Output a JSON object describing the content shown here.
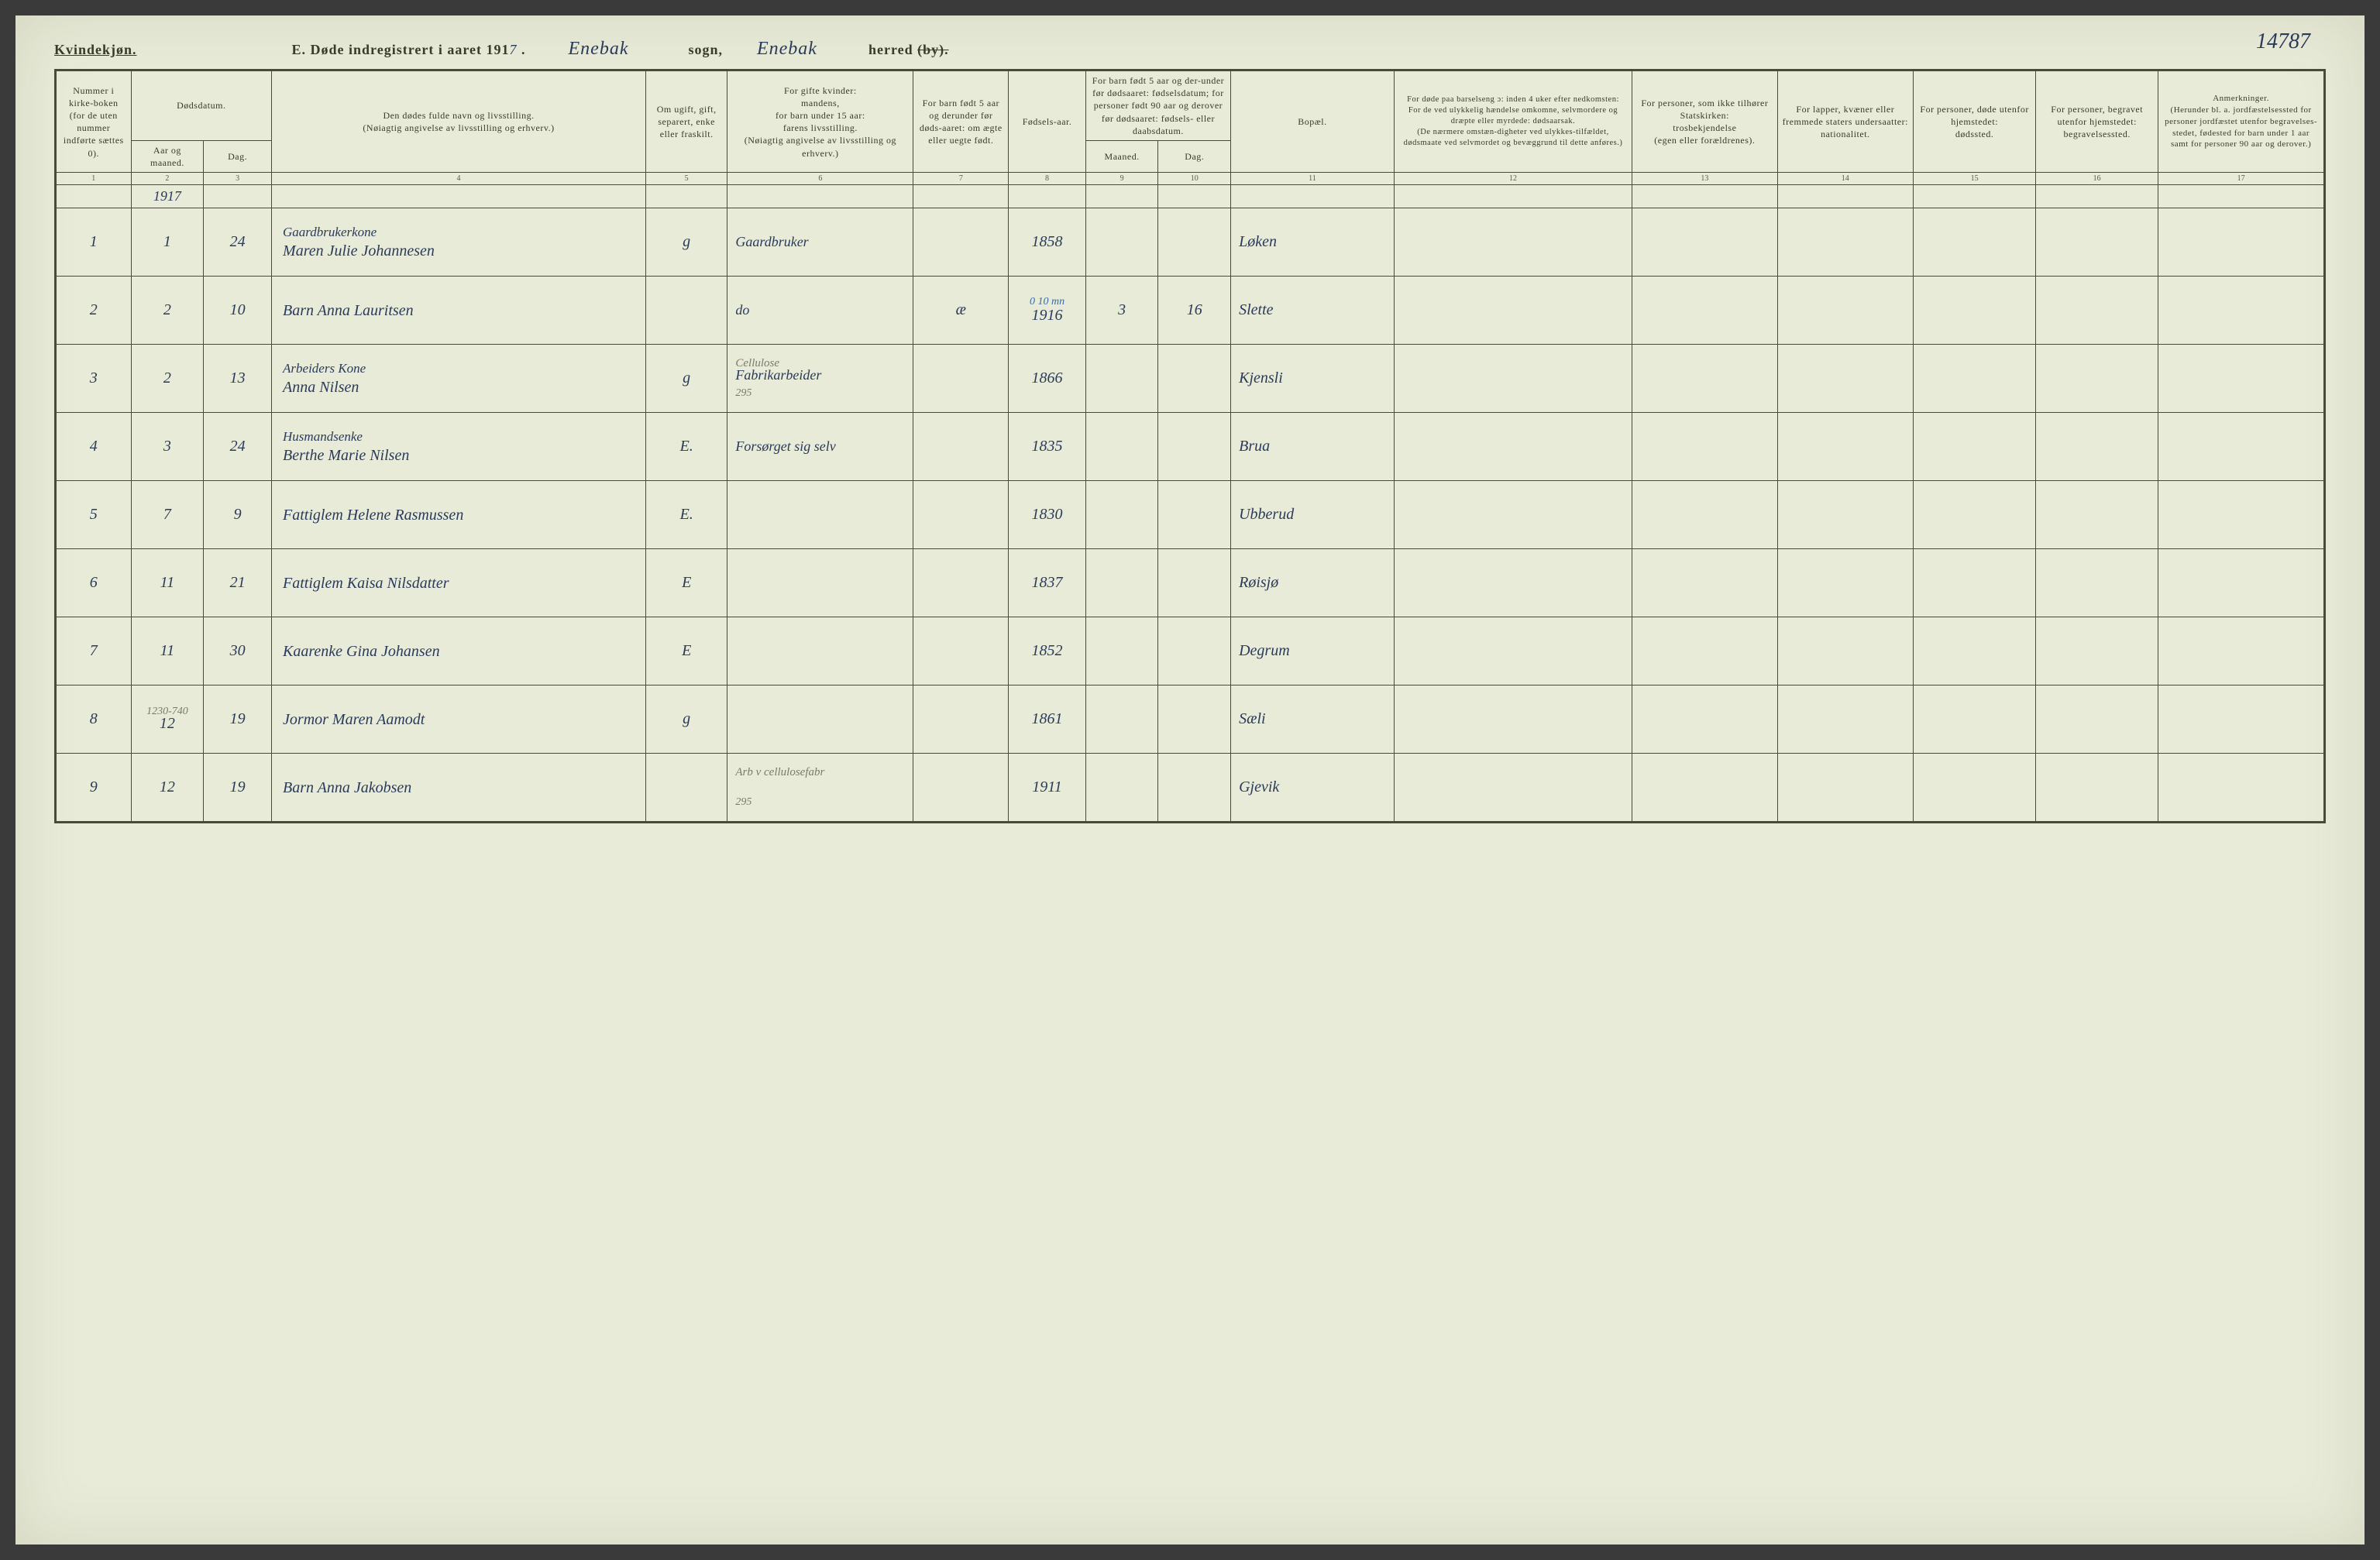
{
  "header": {
    "gender": "Kvindekjøn.",
    "title_prefix": "E.  Døde indregistrert i aaret 191",
    "year_hw": "7",
    "title_dot": " .",
    "sogn_hw": "Enebak",
    "sogn_label": "sogn,",
    "herred_hw": "Enebak",
    "herred_label": "herred",
    "herred_strike": "(by).",
    "page_number": "14787"
  },
  "columns": {
    "c1": "Nummer i kirke-boken (for de uten nummer indførte sættes 0).",
    "c2_group": "Dødsdatum.",
    "c2": "Aar og maaned.",
    "c3": "Dag.",
    "c4": "Den dødes fulde navn og livsstilling.\n(Nøiagtig angivelse av livsstilling og erhverv.)",
    "c5": "Om ugift, gift, separert, enke eller fraskilt.",
    "c6": "For gifte kvinder:\nmandens,\nfor barn under 15 aar:\nfarens livsstilling.\n(Nøiagtig angivelse av livsstilling og erhverv.)",
    "c7": "For barn født 5 aar og derunder før døds-aaret: om ægte eller uegte født.",
    "c8": "Fødsels-aar.",
    "c9_10_group": "For barn født 5 aar og der-under før dødsaaret: fødselsdatum; for personer født 90 aar og derover før dødsaaret: fødsels- eller daabsdatum.",
    "c9": "Maaned.",
    "c10": "Dag.",
    "c11": "Bopæl.",
    "c12": "For døde paa barselseng ɔ: inden 4 uker efter nedkomsten:\nFor de ved ulykkelig hændelse omkomne, selvmordere og dræpte eller myrdede: dødsaarsak.\n(De nærmere omstæn-digheter ved ulykkes-tilfældet, dødsmaate ved selvmordet og bevæggrund til dette anføres.)",
    "c13": "For personer, som ikke tilhører Statskirken:\ntrosbekjendelse\n(egen eller forældrenes).",
    "c14": "For lapper, kvæner eller fremmede staters undersaatter:\nnationalitet.",
    "c15": "For personer, døde utenfor hjemstedet:\ndødssted.",
    "c16": "For personer, begravet utenfor hjemstedet:\nbegravelsessted.",
    "c17": "Anmerkninger.\n(Herunder bl. a. jordfæstelsessted for personer jordfæstet utenfor begravelses-stedet, fødested for barn under 1 aar samt for personer 90 aar og derover.)"
  },
  "colnums": [
    "1",
    "2",
    "3",
    "4",
    "5",
    "6",
    "7",
    "8",
    "9",
    "10",
    "11",
    "12",
    "13",
    "14",
    "15",
    "16",
    "17"
  ],
  "year_row": "1917",
  "rows": [
    {
      "n": "1",
      "mo": "1",
      "day": "24",
      "occ": "Gaardbrukerkone",
      "name": "Maren Julie Johannesen",
      "ms": "g",
      "c6": "Gaardbruker",
      "c7": "",
      "c8": "1858",
      "c9": "",
      "c10": "",
      "place": "Løken"
    },
    {
      "n": "2",
      "mo": "2",
      "day": "10",
      "occ": "",
      "name": "Barn Anna Lauritsen",
      "ms": "",
      "c6": "do",
      "c7": "æ",
      "c8": "1916",
      "c8_note": "0 10 mn",
      "c9": "3",
      "c10": "16",
      "place": "Slette"
    },
    {
      "n": "3",
      "mo": "2",
      "day": "13",
      "occ": "Arbeiders Kone",
      "name": "Anna Nilsen",
      "ms": "g",
      "c6": "Fabrikarbeider",
      "c6_pencil": "Cellulose",
      "c6_pencil2": "295",
      "c7": "",
      "c8": "1866",
      "c9": "",
      "c10": "",
      "place": "Kjensli"
    },
    {
      "n": "4",
      "mo": "3",
      "day": "24",
      "occ": "Husmandsenke",
      "name": "Berthe Marie Nilsen",
      "ms": "E.",
      "c6": "Forsørget sig selv",
      "c7": "",
      "c8": "1835",
      "c9": "",
      "c10": "",
      "place": "Brua"
    },
    {
      "n": "5",
      "mo": "7",
      "day": "9",
      "occ": "",
      "name": "Fattiglem Helene Rasmussen",
      "ms": "E.",
      "c6": "",
      "c7": "",
      "c8": "1830",
      "c9": "",
      "c10": "",
      "place": "Ubberud"
    },
    {
      "n": "6",
      "mo": "11",
      "day": "21",
      "occ": "",
      "name": "Fattiglem Kaisa Nilsdatter",
      "ms": "E",
      "c6": "",
      "c7": "",
      "c8": "1837",
      "c9": "",
      "c10": "",
      "place": "Røisjø"
    },
    {
      "n": "7",
      "mo": "11",
      "day": "30",
      "occ": "",
      "name": "Kaarenke Gina Johansen",
      "ms": "E",
      "c6": "",
      "c7": "",
      "c8": "1852",
      "c9": "",
      "c10": "",
      "place": "Degrum"
    },
    {
      "n": "8",
      "mo": "12",
      "day": "19",
      "mo_pencil": "1230-740",
      "occ": "",
      "name": "Jormor Maren Aamodt",
      "ms": "g",
      "c6": "",
      "c7": "",
      "c8": "1861",
      "c9": "",
      "c10": "",
      "place": "Sæli"
    },
    {
      "n": "9",
      "mo": "12",
      "day": "19",
      "occ": "",
      "name": "Barn Anna Jakobsen",
      "ms": "",
      "c6": "",
      "c6_pencil": "Arb v cellulosefabr",
      "c6_pencil2": "295",
      "c7": "",
      "c8": "1911",
      "c9": "",
      "c10": "",
      "place": "Gjevik"
    }
  ]
}
